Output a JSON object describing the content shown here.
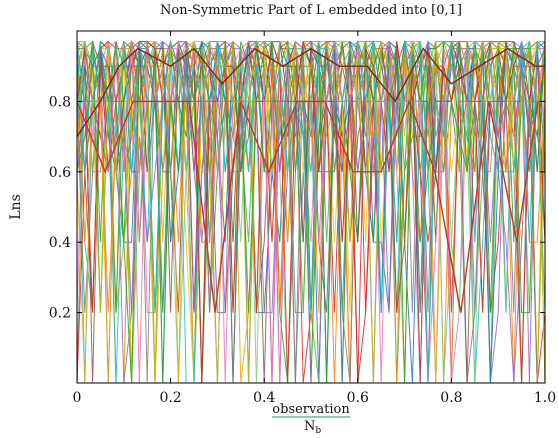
{
  "chart_data": {
    "type": "line",
    "title": "Non-Symmetric Part of L embedded into [0,1]",
    "ylabel": "Lns",
    "xlabel_numerator": "observation",
    "xlabel_denominator": "N",
    "xlabel_denominator_sub": "b",
    "xlim": [
      0,
      1
    ],
    "ylim": [
      0,
      1
    ],
    "grid": false,
    "x_ticks": [
      "0",
      "0.2",
      "0.4",
      "0.6",
      "0.8",
      "1.0"
    ],
    "y_ticks": [
      "0.2",
      "0.4",
      "0.6",
      "0.8"
    ],
    "dense_series_count": 40,
    "palette": [
      "#1f77b4",
      "#ff7f0e",
      "#2ca02c",
      "#d62728",
      "#9467bd",
      "#8c564b",
      "#e377c2",
      "#7f7f7f",
      "#bcbd22",
      "#17becf",
      "#4dbb3a",
      "#f0c419",
      "#7fc97f",
      "#33a02c",
      "#e6ab02"
    ],
    "highlight_series": [
      {
        "color": "#c0392b",
        "x": [
          0.0,
          0.06,
          0.12,
          0.24,
          0.295,
          0.35,
          0.41,
          0.47,
          0.53,
          0.59,
          0.65,
          0.71,
          0.765,
          0.82,
          0.88,
          0.94,
          0.985
        ],
        "values": [
          0.8,
          0.6,
          0.8,
          0.8,
          0.2,
          0.8,
          0.6,
          0.8,
          0.8,
          0.6,
          0.6,
          0.8,
          0.6,
          0.2,
          0.8,
          0.4,
          0.8
        ]
      },
      {
        "color": "#8b2500",
        "x": [
          0.0,
          0.05,
          0.09,
          0.13,
          0.2,
          0.25,
          0.31,
          0.38,
          0.44,
          0.5,
          0.56,
          0.62,
          0.68,
          0.74,
          0.8,
          0.86,
          0.92,
          0.98,
          1.0
        ],
        "values": [
          0.7,
          0.8,
          0.9,
          0.95,
          0.9,
          0.95,
          0.85,
          0.95,
          0.9,
          0.95,
          0.9,
          0.9,
          0.8,
          0.95,
          0.85,
          0.9,
          0.95,
          0.9,
          0.9
        ]
      }
    ]
  }
}
